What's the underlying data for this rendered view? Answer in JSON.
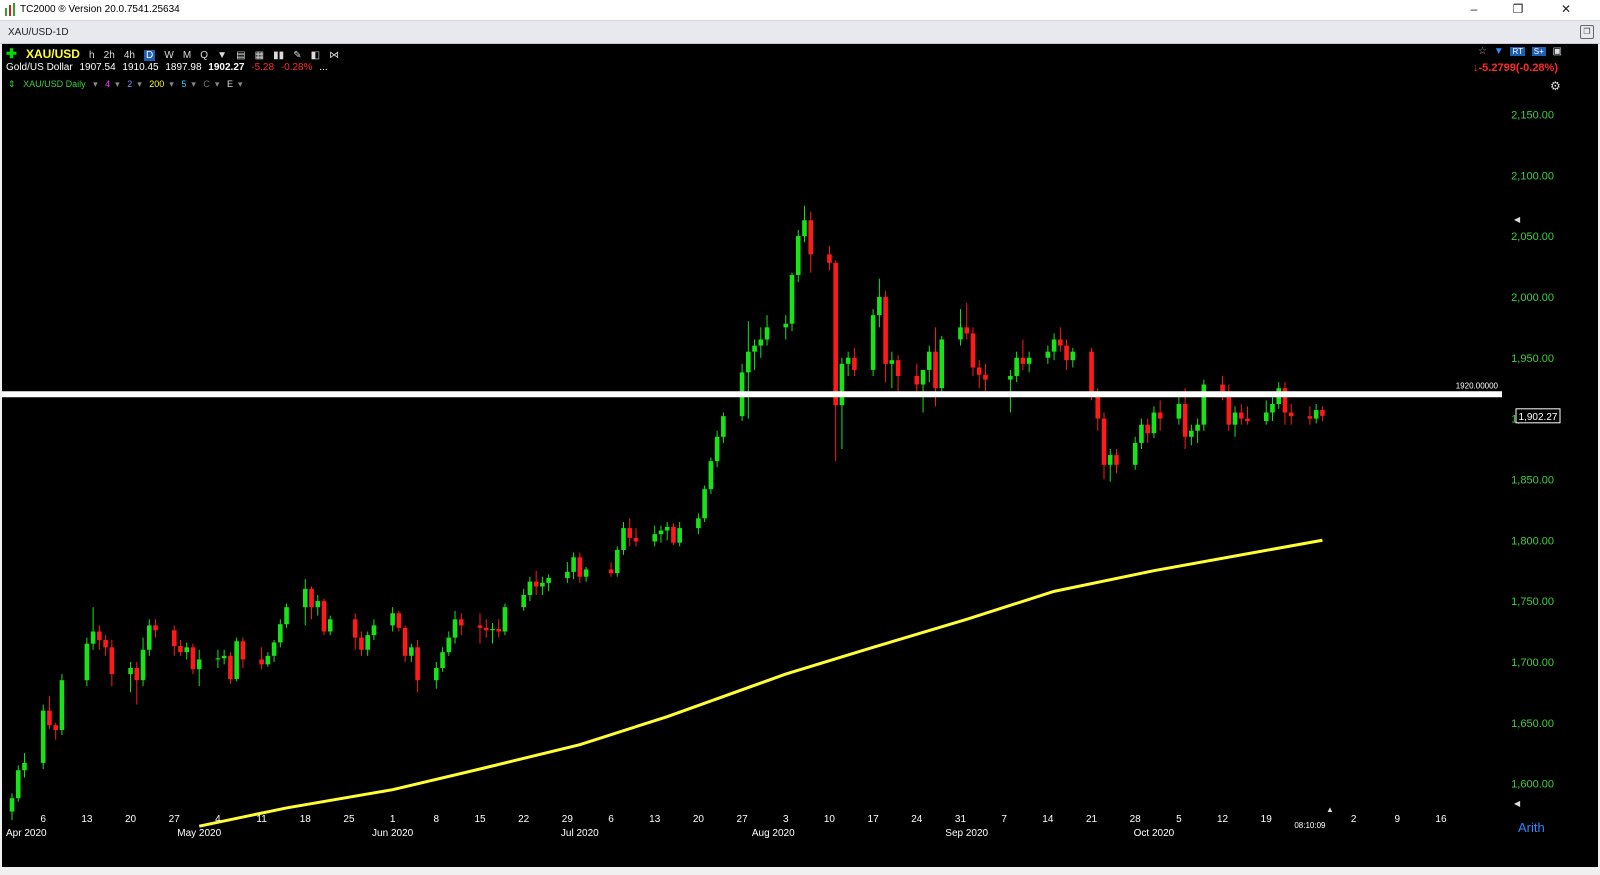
{
  "window": {
    "title": "TC2000 ® Version 20.0.7541.25634",
    "minimize": "–",
    "maximize": "❐",
    "close": "✕"
  },
  "tab": {
    "name": "XAU/USD-1D"
  },
  "header": {
    "symbol": "XAU/USD",
    "timeframes": [
      "h",
      "2h",
      "4h",
      "D",
      "W",
      "M",
      "Q"
    ],
    "selected_timeframe": "D",
    "name": "Gold/US Dollar",
    "open": "1907.54",
    "high": "1910.45",
    "low": "1897.98",
    "close": "1902.27",
    "change": "-5.28",
    "change_pct": "-0.28%",
    "more": "...",
    "right_change": "-5.2799",
    "right_change_pct": "(-0.28%)",
    "right_arrow": "↓",
    "rt_label": "RT"
  },
  "indicators": {
    "series_label": "XAU/USD Daily",
    "items": [
      {
        "label": "4",
        "color": "#ff33ff"
      },
      {
        "label": "2",
        "color": "#8c8cff"
      },
      {
        "label": "200",
        "color": "#ffff33"
      },
      {
        "label": "5",
        "color": "#33ccff"
      },
      {
        "label": "C",
        "color": "#777777"
      },
      {
        "label": "E",
        "color": "#dddddd"
      }
    ]
  },
  "price_scale": {
    "labels": [
      "2,150.00",
      "2,100.00",
      "2,050.00",
      "2,000.00",
      "1,950.00",
      "1,900.00",
      "1,850.00",
      "1,800.00",
      "1,750.00",
      "1,700.00",
      "1,650.00",
      "1,600.00"
    ],
    "current_price_tag": "1,902.27",
    "hline_label": "1920.00000",
    "scale_mode": "Arith",
    "color": "#3cd03c"
  },
  "time_axis": {
    "labels": [
      "6",
      "13",
      "20",
      "27",
      "4",
      "May 2020",
      "11",
      "18",
      "25",
      "Jun 2020",
      "1",
      "8",
      "15",
      "22",
      "29",
      "6",
      "Jul 2020",
      "13",
      "20",
      "27",
      "3",
      "Aug 2020",
      "10",
      "17",
      "24",
      "31",
      "Sep 2020",
      "7",
      "14",
      "21",
      "28",
      "Oct 2020",
      "5",
      "12",
      "19",
      "26",
      "2",
      "9",
      "16"
    ],
    "clock": "08:10:09",
    "first_label_partial": "Apr 2020"
  },
  "chart_data": {
    "type": "candlestick",
    "title": "",
    "symbol": "XAU/USD",
    "ylim": [
      1575,
      2175
    ],
    "horizontal_line": 1920.0,
    "last_close": 1902.27,
    "up_color": "#17e317",
    "down_color": "#ff1a1a",
    "ma_color": "#ffff33",
    "candles": [
      [
        "Apr 01",
        1577,
        1592,
        1570,
        1588
      ],
      [
        "Apr 02",
        1588,
        1615,
        1585,
        1611
      ],
      [
        "Apr 03",
        1611,
        1625,
        1605,
        1617
      ],
      [
        "Apr 06",
        1617,
        1665,
        1612,
        1660
      ],
      [
        "Apr 07",
        1660,
        1672,
        1645,
        1648
      ],
      [
        "Apr 08",
        1648,
        1650,
        1636,
        1644
      ],
      [
        "Apr 09",
        1644,
        1690,
        1640,
        1685
      ],
      [
        "Apr 13",
        1685,
        1720,
        1680,
        1715
      ],
      [
        "Apr 14",
        1715,
        1745,
        1710,
        1725
      ],
      [
        "Apr 15",
        1725,
        1730,
        1710,
        1718
      ],
      [
        "Apr 16",
        1718,
        1722,
        1705,
        1712
      ],
      [
        "Apr 17",
        1712,
        1718,
        1680,
        1690
      ],
      [
        "Apr 20",
        1690,
        1700,
        1675,
        1695
      ],
      [
        "Apr 21",
        1695,
        1700,
        1665,
        1685
      ],
      [
        "Apr 22",
        1685,
        1720,
        1680,
        1710
      ],
      [
        "Apr 23",
        1710,
        1735,
        1705,
        1730
      ],
      [
        "Apr 24",
        1730,
        1735,
        1720,
        1726
      ],
      [
        "Apr 27",
        1726,
        1730,
        1705,
        1713
      ],
      [
        "Apr 28",
        1713,
        1718,
        1705,
        1708
      ],
      [
        "Apr 29",
        1708,
        1716,
        1702,
        1712
      ],
      [
        "Apr 30",
        1712,
        1715,
        1690,
        1694
      ],
      [
        "May 01",
        1694,
        1710,
        1680,
        1702
      ],
      [
        "May 04",
        1702,
        1710,
        1695,
        1703
      ],
      [
        "May 05",
        1703,
        1710,
        1698,
        1705
      ],
      [
        "May 06",
        1705,
        1708,
        1682,
        1686
      ],
      [
        "May 07",
        1686,
        1720,
        1684,
        1717
      ],
      [
        "May 08",
        1717,
        1720,
        1695,
        1702
      ],
      [
        "May 11",
        1702,
        1712,
        1694,
        1698
      ],
      [
        "May 12",
        1698,
        1708,
        1696,
        1705
      ],
      [
        "May 13",
        1705,
        1718,
        1700,
        1716
      ],
      [
        "May 14",
        1716,
        1735,
        1712,
        1731
      ],
      [
        "May 15",
        1731,
        1748,
        1728,
        1745
      ],
      [
        "May 18",
        1745,
        1768,
        1730,
        1760
      ],
      [
        "May 19",
        1760,
        1762,
        1735,
        1745
      ],
      [
        "May 20",
        1745,
        1755,
        1738,
        1750
      ],
      [
        "May 21",
        1750,
        1752,
        1722,
        1725
      ],
      [
        "May 22",
        1725,
        1738,
        1722,
        1735
      ],
      [
        "May 26",
        1735,
        1740,
        1710,
        1720
      ],
      [
        "May 27",
        1720,
        1725,
        1705,
        1710
      ],
      [
        "May 28",
        1710,
        1725,
        1705,
        1722
      ],
      [
        "May 29",
        1722,
        1735,
        1718,
        1730
      ],
      [
        "Jun 01",
        1730,
        1745,
        1725,
        1740
      ],
      [
        "Jun 02",
        1740,
        1742,
        1725,
        1728
      ],
      [
        "Jun 03",
        1728,
        1730,
        1700,
        1705
      ],
      [
        "Jun 04",
        1705,
        1715,
        1700,
        1712
      ],
      [
        "Jun 05",
        1712,
        1718,
        1675,
        1685
      ],
      [
        "Jun 08",
        1685,
        1700,
        1678,
        1695
      ],
      [
        "Jun 09",
        1695,
        1712,
        1692,
        1708
      ],
      [
        "Jun 10",
        1708,
        1725,
        1705,
        1720
      ],
      [
        "Jun 11",
        1720,
        1742,
        1715,
        1735
      ],
      [
        "Jun 12",
        1735,
        1740,
        1722,
        1730
      ],
      [
        "Jun 15",
        1730,
        1740,
        1715,
        1728
      ],
      [
        "Jun 16",
        1728,
        1735,
        1720,
        1726
      ],
      [
        "Jun 17",
        1726,
        1732,
        1715,
        1727
      ],
      [
        "Jun 18",
        1727,
        1735,
        1720,
        1725
      ],
      [
        "Jun 19",
        1725,
        1748,
        1722,
        1745
      ],
      [
        "Jun 22",
        1745,
        1760,
        1742,
        1755
      ],
      [
        "Jun 23",
        1755,
        1770,
        1750,
        1766
      ],
      [
        "Jun 24",
        1766,
        1775,
        1755,
        1762
      ],
      [
        "Jun 25",
        1762,
        1770,
        1755,
        1765
      ],
      [
        "Jun 26",
        1765,
        1772,
        1758,
        1769
      ],
      [
        "Jun 29",
        1769,
        1782,
        1765,
        1774
      ],
      [
        "Jun 30",
        1774,
        1790,
        1768,
        1786
      ],
      [
        "Jul 01",
        1786,
        1790,
        1765,
        1770
      ],
      [
        "Jul 02",
        1770,
        1778,
        1766,
        1776
      ],
      [
        "Jul 06",
        1776,
        1782,
        1770,
        1773
      ],
      [
        "Jul 07",
        1773,
        1795,
        1770,
        1792
      ],
      [
        "Jul 08",
        1792,
        1815,
        1788,
        1810
      ],
      [
        "Jul 09",
        1810,
        1818,
        1795,
        1802
      ],
      [
        "Jul 10",
        1802,
        1810,
        1795,
        1799
      ],
      [
        "Jul 13",
        1799,
        1812,
        1795,
        1805
      ],
      [
        "Jul 14",
        1805,
        1812,
        1798,
        1808
      ],
      [
        "Jul 15",
        1808,
        1815,
        1800,
        1811
      ],
      [
        "Jul 16",
        1811,
        1814,
        1796,
        1798
      ],
      [
        "Jul 17",
        1798,
        1815,
        1795,
        1810
      ],
      [
        "Jul 20",
        1810,
        1822,
        1805,
        1818
      ],
      [
        "Jul 21",
        1818,
        1845,
        1815,
        1842
      ],
      [
        "Jul 22",
        1842,
        1868,
        1838,
        1865
      ],
      [
        "Jul 23",
        1865,
        1890,
        1860,
        1885
      ],
      [
        "Jul 24",
        1885,
        1905,
        1880,
        1902
      ],
      [
        "Jul 27",
        1902,
        1945,
        1898,
        1938
      ],
      [
        "Jul 28",
        1938,
        1980,
        1900,
        1955
      ],
      [
        "Jul 29",
        1955,
        1965,
        1940,
        1960
      ],
      [
        "Jul 30",
        1960,
        1975,
        1950,
        1965
      ],
      [
        "Jul 31",
        1965,
        1985,
        1960,
        1975
      ],
      [
        "Aug 03",
        1975,
        1985,
        1965,
        1978
      ],
      [
        "Aug 04",
        1978,
        2020,
        1972,
        2018
      ],
      [
        "Aug 05",
        2018,
        2055,
        2012,
        2050
      ],
      [
        "Aug 06",
        2050,
        2075,
        2045,
        2063
      ],
      [
        "Aug 07",
        2063,
        2070,
        2020,
        2035
      ],
      [
        "Aug 10",
        2035,
        2042,
        2022,
        2028
      ],
      [
        "Aug 11",
        2028,
        2030,
        1865,
        1911
      ],
      [
        "Aug 12",
        1911,
        1950,
        1875,
        1945
      ],
      [
        "Aug 13",
        1945,
        1955,
        1935,
        1950
      ],
      [
        "Aug 14",
        1950,
        1958,
        1935,
        1940
      ],
      [
        "Aug 17",
        1940,
        1990,
        1935,
        1985
      ],
      [
        "Aug 18",
        1985,
        2015,
        1975,
        2000
      ],
      [
        "Aug 19",
        2000,
        2005,
        1930,
        1945
      ],
      [
        "Aug 20",
        1945,
        1955,
        1925,
        1948
      ],
      [
        "Aug 21",
        1948,
        1952,
        1922,
        1935
      ],
      [
        "Aug 24",
        1935,
        1945,
        1918,
        1928
      ],
      [
        "Aug 25",
        1928,
        1940,
        1905,
        1940
      ],
      [
        "Aug 26",
        1940,
        1960,
        1930,
        1955
      ],
      [
        "Aug 27",
        1955,
        1975,
        1910,
        1925
      ],
      [
        "Aug 28",
        1925,
        1968,
        1920,
        1965
      ],
      [
        "Aug 31",
        1965,
        1990,
        1960,
        1975
      ],
      [
        "Sep 01",
        1975,
        1995,
        1965,
        1970
      ],
      [
        "Sep 02",
        1970,
        1975,
        1935,
        1942
      ],
      [
        "Sep 03",
        1942,
        1948,
        1925,
        1936
      ],
      [
        "Sep 04",
        1936,
        1945,
        1920,
        1932
      ],
      [
        "Sep 08",
        1932,
        1940,
        1905,
        1935
      ],
      [
        "Sep 09",
        1935,
        1955,
        1930,
        1950
      ],
      [
        "Sep 10",
        1950,
        1965,
        1940,
        1945
      ],
      [
        "Sep 11",
        1945,
        1955,
        1938,
        1950
      ],
      [
        "Sep 14",
        1950,
        1960,
        1945,
        1955
      ],
      [
        "Sep 15",
        1955,
        1970,
        1948,
        1965
      ],
      [
        "Sep 16",
        1965,
        1975,
        1955,
        1960
      ],
      [
        "Sep 17",
        1960,
        1965,
        1940,
        1948
      ],
      [
        "Sep 18",
        1948,
        1958,
        1942,
        1955
      ],
      [
        "Sep 21",
        1955,
        1958,
        1915,
        1920
      ],
      [
        "Sep 22",
        1920,
        1925,
        1890,
        1900
      ],
      [
        "Sep 23",
        1900,
        1905,
        1850,
        1862
      ],
      [
        "Sep 24",
        1862,
        1875,
        1848,
        1870
      ],
      [
        "Sep 25",
        1870,
        1875,
        1855,
        1862
      ],
      [
        "Sep 28",
        1862,
        1885,
        1858,
        1880
      ],
      [
        "Sep 29",
        1880,
        1900,
        1875,
        1895
      ],
      [
        "Sep 30",
        1895,
        1900,
        1880,
        1888
      ],
      [
        "Oct 01",
        1888,
        1910,
        1884,
        1905
      ],
      [
        "Oct 02",
        1905,
        1915,
        1890,
        1900
      ],
      [
        "Oct 05",
        1900,
        1920,
        1895,
        1912
      ],
      [
        "Oct 06",
        1912,
        1925,
        1875,
        1885
      ],
      [
        "Oct 07",
        1885,
        1895,
        1878,
        1890
      ],
      [
        "Oct 08",
        1890,
        1900,
        1880,
        1895
      ],
      [
        "Oct 09",
        1895,
        1932,
        1890,
        1928
      ],
      [
        "Oct 12",
        1928,
        1935,
        1915,
        1922
      ],
      [
        "Oct 13",
        1922,
        1928,
        1890,
        1895
      ],
      [
        "Oct 14",
        1895,
        1910,
        1885,
        1905
      ],
      [
        "Oct 15",
        1905,
        1912,
        1895,
        1900
      ],
      [
        "Oct 16",
        1900,
        1910,
        1895,
        1898
      ],
      [
        "Oct 19",
        1898,
        1915,
        1895,
        1905
      ],
      [
        "Oct 20",
        1905,
        1918,
        1898,
        1912
      ],
      [
        "Oct 21",
        1912,
        1930,
        1908,
        1925
      ],
      [
        "Oct 22",
        1925,
        1930,
        1895,
        1905
      ],
      [
        "Oct 23",
        1905,
        1912,
        1895,
        1902
      ],
      [
        "Oct 26",
        1902,
        1910,
        1895,
        1900
      ],
      [
        "Oct 27",
        1900,
        1912,
        1896,
        1907
      ],
      [
        "Oct 28",
        1907,
        1910,
        1898,
        1902.27
      ]
    ],
    "ma200": {
      "name": "200",
      "points": [
        [
          "May 01",
          1565
        ],
        [
          "May 15",
          1580
        ],
        [
          "Jun 01",
          1595
        ],
        [
          "Jun 15",
          1612
        ],
        [
          "Jul 01",
          1632
        ],
        [
          "Jul 15",
          1655
        ],
        [
          "Aug 03",
          1690
        ],
        [
          "Aug 17",
          1712
        ],
        [
          "Sep 01",
          1735
        ],
        [
          "Sep 15",
          1758
        ],
        [
          "Oct 01",
          1775
        ],
        [
          "Oct 15",
          1788
        ],
        [
          "Oct 28",
          1800
        ]
      ]
    }
  }
}
